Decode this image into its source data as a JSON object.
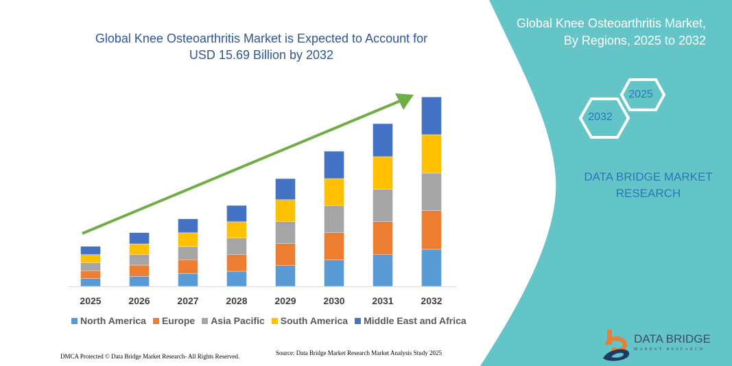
{
  "chart_data": {
    "type": "bar",
    "stacked": true,
    "title": "Global Knee Osteoarthritis Market is Expected to Account for USD 15.69 Billion by 2032",
    "categories": [
      "2025",
      "2026",
      "2027",
      "2028",
      "2029",
      "2030",
      "2031",
      "2032"
    ],
    "series": [
      {
        "name": "North America",
        "color": "#5B9BD5",
        "values": [
          0.64,
          0.83,
          1.06,
          1.25,
          1.72,
          2.18,
          2.63,
          3.07
        ]
      },
      {
        "name": "Europe",
        "color": "#ED7D31",
        "values": [
          0.65,
          0.93,
          1.14,
          1.38,
          1.82,
          2.27,
          2.73,
          3.2
        ]
      },
      {
        "name": "Asia Pacific",
        "color": "#A5A5A5",
        "values": [
          0.66,
          0.87,
          1.1,
          1.36,
          1.82,
          2.25,
          2.67,
          3.11
        ]
      },
      {
        "name": "South America",
        "color": "#FFC000",
        "values": [
          0.68,
          0.89,
          1.14,
          1.36,
          1.82,
          2.22,
          2.71,
          3.18
        ]
      },
      {
        "name": "Middle East and Africa",
        "color": "#4472C4",
        "values": [
          0.68,
          0.93,
          1.15,
          1.35,
          1.74,
          2.27,
          2.73,
          3.12
        ]
      }
    ],
    "ylim": [
      0,
      15.69
    ],
    "grid": false,
    "legend_position": "bottom",
    "trend_arrow_color": "#70AD47"
  },
  "title_lines": [
    "Global Knee Osteoarthritis Market is Expected to Account for",
    "USD 15.69 Billion by 2032"
  ],
  "side_panel": {
    "title_lines": [
      "Global Knee Osteoarthritis Market,",
      "By Regions, 2025 to 2032"
    ],
    "hex_start": "2025",
    "hex_end": "2032",
    "brand_lines": [
      "DATA BRIDGE MARKET",
      "RESEARCH"
    ],
    "color": "#63C5C8"
  },
  "logo": {
    "name": "DATA BRIDGE",
    "sub": "MARKET RESEARCH"
  },
  "footer": {
    "left": "DMCA Protected © Data Bridge Market Research- All Rights Reserved.",
    "source": "Source: Data Bridge Market Research  Market Analysis Study 2025"
  }
}
